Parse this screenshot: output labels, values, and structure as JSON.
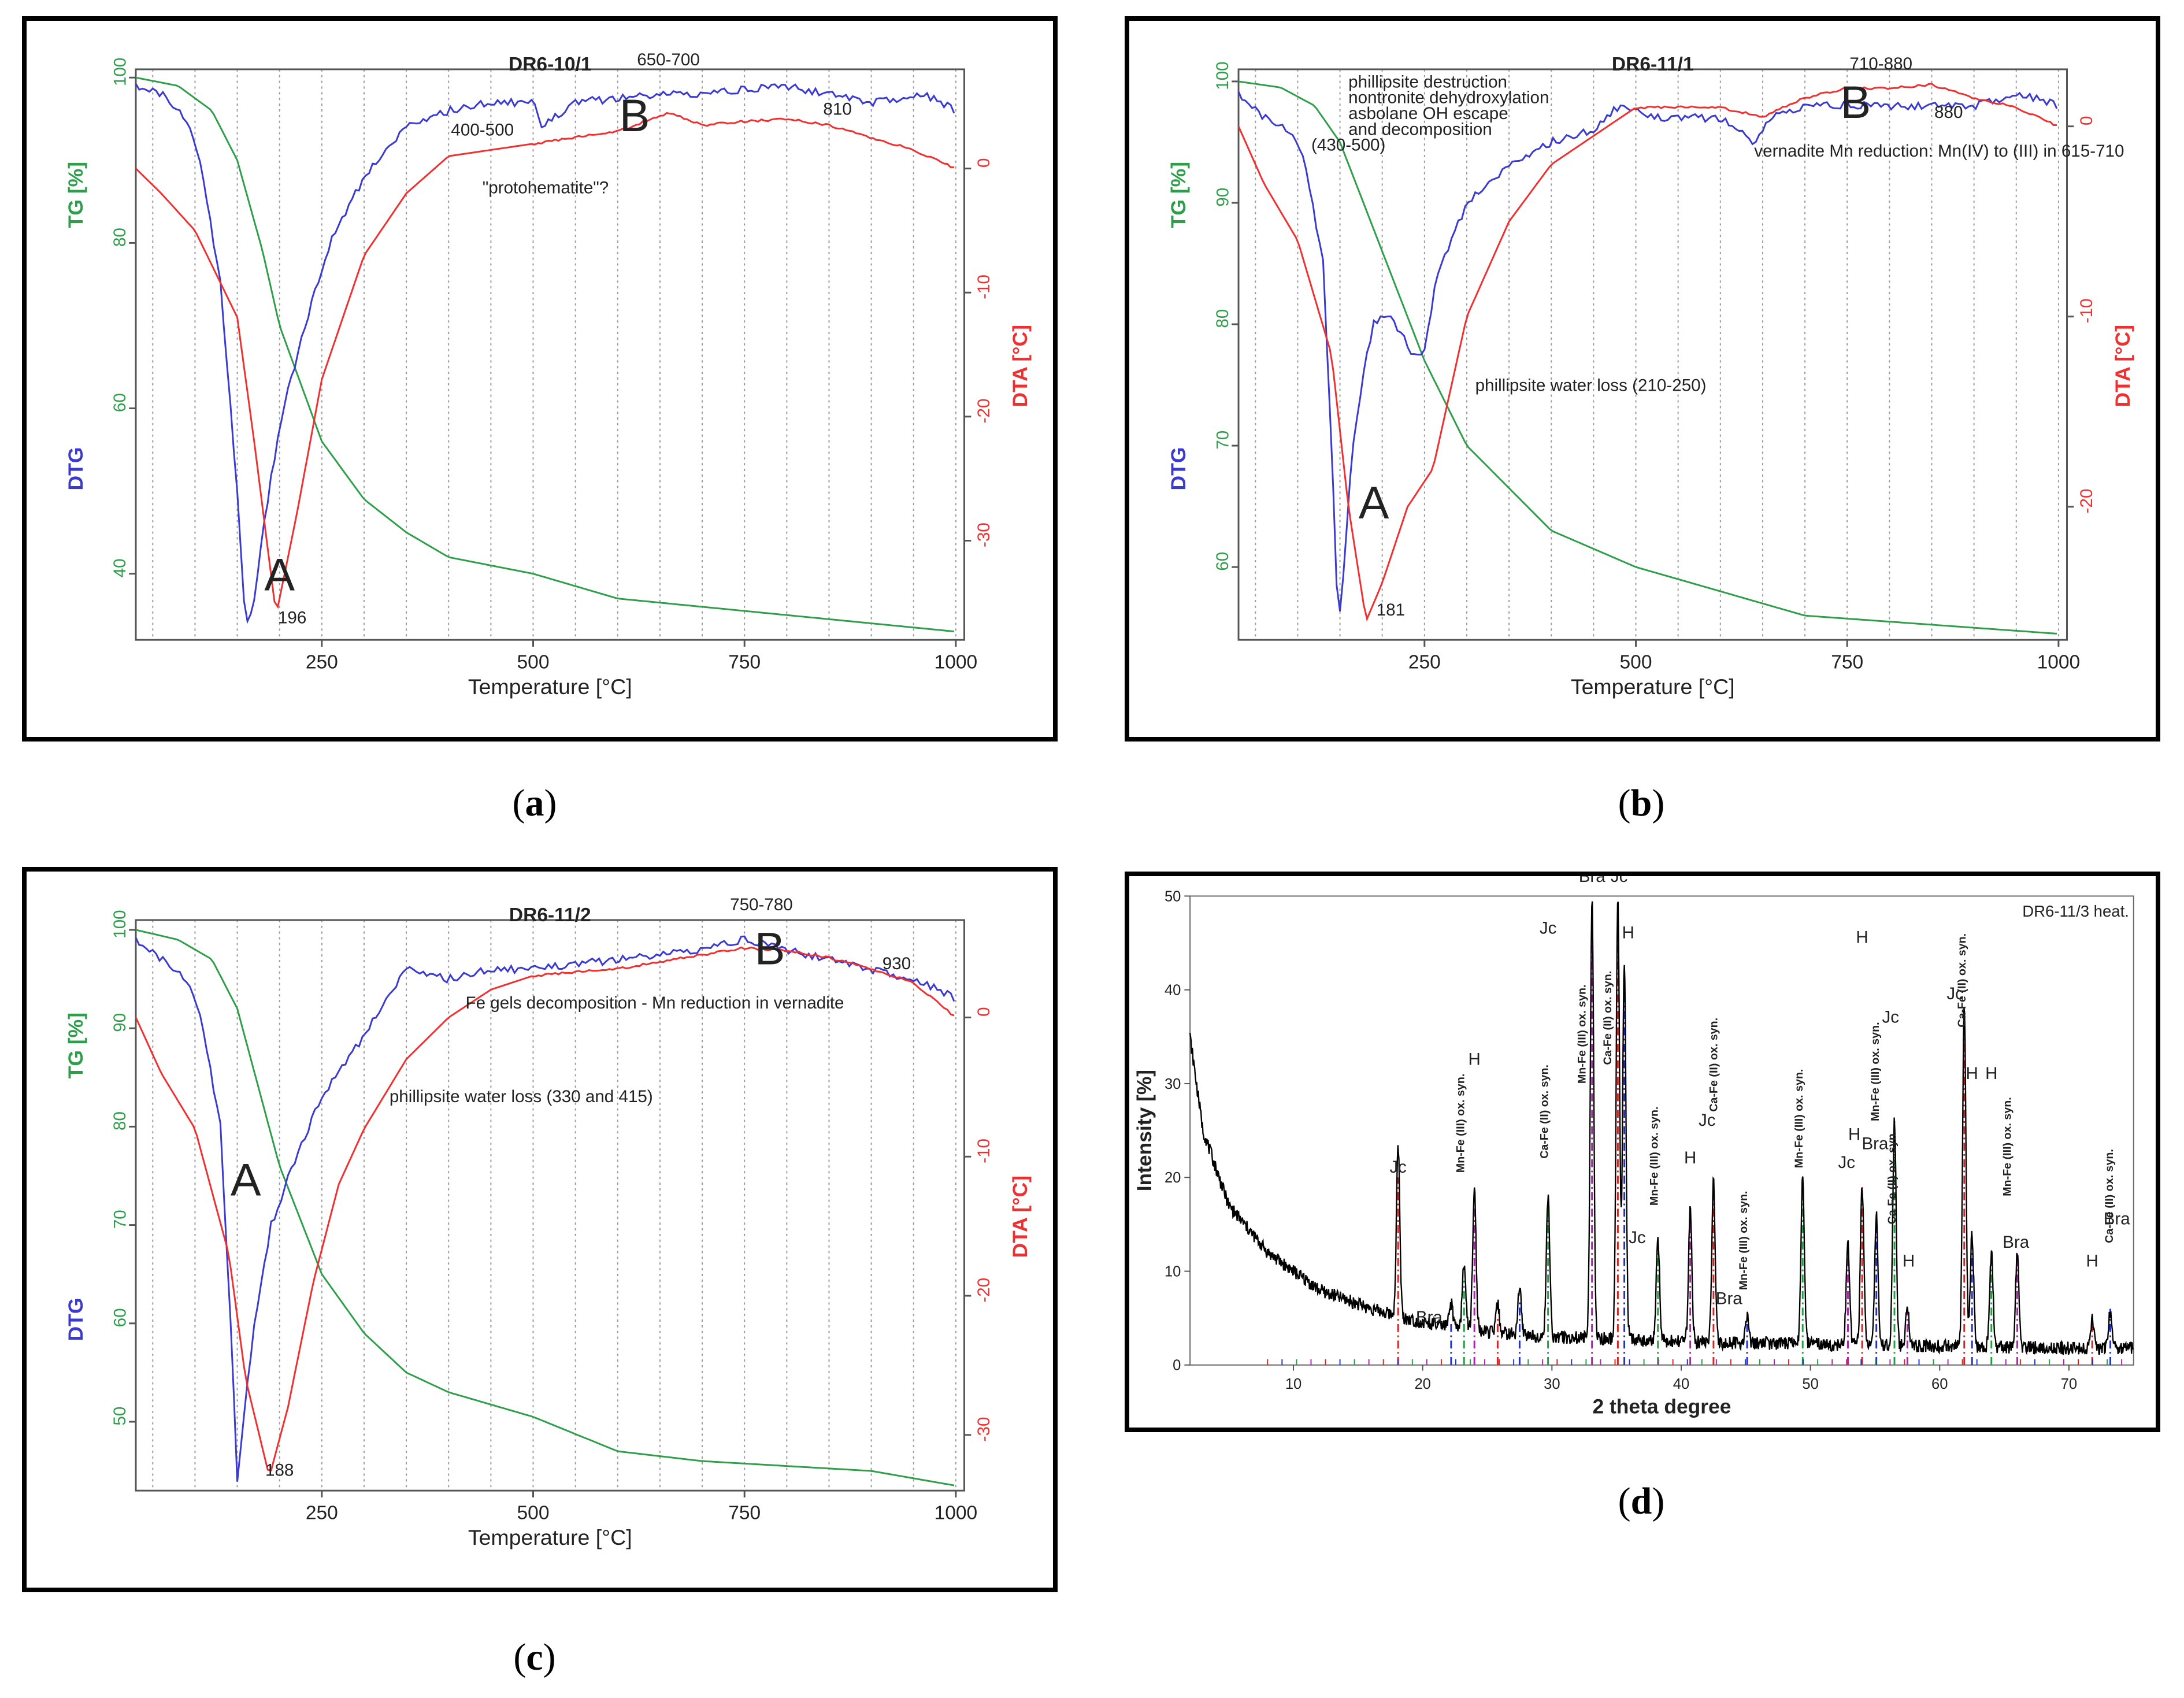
{
  "colors": {
    "tg": "#2e9e4a",
    "dtg": "#3a3ad0",
    "dta": "#f03030",
    "grid": "#9a9a9a",
    "xrd": "#000000"
  },
  "captions": {
    "a": "a",
    "b": "b",
    "c": "c",
    "d": "d"
  },
  "chart_data": [
    {
      "id": "a",
      "type": "line",
      "title": "DR6-10/1",
      "xlabel": "Temperature [°C]",
      "ylabel_left": "TG [%]",
      "ylabel_left2": "DTG",
      "ylabel_right": "DTA [°C]",
      "xlim": [
        30,
        1010
      ],
      "ylim": [
        32,
        101
      ],
      "y2lim": [
        -38,
        8
      ],
      "xticks": [
        "250",
        "500",
        "750",
        "1000"
      ],
      "yticks": [
        "40",
        "60",
        "80",
        "100"
      ],
      "y2ticks": [
        "0",
        "-10",
        "-20",
        "-30"
      ],
      "series": [
        {
          "name": "TG",
          "axis": "left",
          "x": [
            30,
            80,
            120,
            150,
            180,
            200,
            250,
            300,
            350,
            400,
            500,
            600,
            700,
            800,
            900,
            1000
          ],
          "values": [
            100,
            99,
            96,
            90,
            79,
            70,
            56,
            49,
            45,
            42,
            40,
            37,
            36,
            35,
            34,
            33
          ]
        },
        {
          "name": "DTG",
          "axis": "left",
          "x": [
            30,
            60,
            90,
            110,
            130,
            150,
            160,
            170,
            180,
            200,
            230,
            260,
            300,
            350,
            400,
            450,
            500,
            510,
            550,
            650,
            700,
            800,
            900,
            960,
            1000
          ],
          "values": [
            99,
            98,
            95,
            88,
            75,
            50,
            33,
            37,
            45,
            58,
            70,
            80,
            88,
            94,
            96,
            97,
            97,
            94,
            97,
            98,
            98,
            99,
            97,
            98,
            96
          ]
        },
        {
          "name": "DTA",
          "axis": "right",
          "x": [
            30,
            60,
            100,
            150,
            170,
            196,
            220,
            250,
            300,
            350,
            400,
            500,
            600,
            660,
            700,
            750,
            800,
            850,
            900,
            950,
            1000
          ],
          "values": [
            0,
            -2,
            -5,
            -12,
            -22,
            -36,
            -28,
            -17,
            -7,
            -2,
            1,
            2,
            3,
            4.5,
            3.5,
            3.8,
            4,
            3.5,
            2.5,
            1.5,
            0
          ]
        }
      ],
      "annotations": [
        {
          "text": "650-700",
          "x": 660,
          "y": 101.5
        },
        {
          "text": "400-500",
          "x": 440,
          "y": 93
        },
        {
          "text": "B",
          "x": 620,
          "y": 93.5
        },
        {
          "text": "810",
          "x": 860,
          "y": 95.5
        },
        {
          "text": "\"protohematite\"?",
          "x": 440,
          "y": 86
        },
        {
          "text": "A",
          "x": 200,
          "y": 38
        },
        {
          "text": "196",
          "x": 215,
          "y": 34
        }
      ]
    },
    {
      "id": "b",
      "type": "line",
      "title": "DR6-11/1",
      "xlabel": "Temperature [°C]",
      "ylabel_left": "TG [%]",
      "ylabel_left2": "DTG",
      "ylabel_right": "DTA [°C]",
      "xlim": [
        30,
        1010
      ],
      "ylim": [
        54,
        101
      ],
      "y2lim": [
        -27,
        3
      ],
      "xticks": [
        "250",
        "500",
        "750",
        "1000"
      ],
      "yticks": [
        "60",
        "70",
        "80",
        "90",
        "100"
      ],
      "y2ticks": [
        "0",
        "-10",
        "-20"
      ],
      "series": [
        {
          "name": "TG",
          "axis": "left",
          "x": [
            30,
            80,
            120,
            150,
            200,
            250,
            300,
            400,
            500,
            600,
            700,
            800,
            900,
            1000
          ],
          "values": [
            100,
            99.5,
            98,
            95,
            86,
            77,
            70,
            63,
            60,
            58,
            56,
            55.5,
            55,
            54.5
          ]
        },
        {
          "name": "DTG",
          "axis": "left",
          "x": [
            30,
            60,
            90,
            110,
            130,
            140,
            148,
            155,
            165,
            180,
            190,
            200,
            215,
            225,
            240,
            250,
            265,
            300,
            350,
            400,
            450,
            480,
            520,
            600,
            640,
            660,
            700,
            800,
            900,
            950,
            1000
          ],
          "values": [
            99,
            97,
            96,
            93,
            85,
            70,
            55,
            60,
            70,
            77,
            80,
            81,
            80,
            79,
            77,
            78,
            84,
            90,
            93,
            95,
            96,
            98,
            97,
            97,
            95,
            97,
            98,
            98,
            98,
            99,
            98
          ]
        },
        {
          "name": "DTA",
          "axis": "right",
          "x": [
            30,
            60,
            100,
            140,
            160,
            181,
            200,
            230,
            260,
            300,
            350,
            400,
            500,
            600,
            650,
            700,
            750,
            800,
            850,
            900,
            950,
            1000
          ],
          "values": [
            0,
            -3,
            -6,
            -12,
            -20,
            -26,
            -24,
            -20,
            -18,
            -10,
            -5,
            -2,
            1,
            1,
            0.5,
            1.5,
            2,
            2,
            2.2,
            1.5,
            1,
            0
          ]
        }
      ],
      "annotations": [
        {
          "text": "phillipsite destruction",
          "x": 160,
          "y": 99.5
        },
        {
          "text": "nontronite dehydroxylation",
          "x": 160,
          "y": 98.2
        },
        {
          "text": "asbolane OH escape",
          "x": 160,
          "y": 96.9
        },
        {
          "text": "and decomposition",
          "x": 160,
          "y": 95.6
        },
        {
          "text": "(430-500)",
          "x": 160,
          "y": 94.3
        },
        {
          "text": "710-880",
          "x": 790,
          "y": 101
        },
        {
          "text": "B",
          "x": 760,
          "y": 97
        },
        {
          "text": "880",
          "x": 870,
          "y": 97
        },
        {
          "text": "vernadite Mn reduction: Mn(IV) to (III) in 615-710",
          "x": 640,
          "y": 93.8
        },
        {
          "text": "phillipsite water loss (210-250)",
          "x": 310,
          "y": 74.5
        },
        {
          "text": "A",
          "x": 190,
          "y": 64
        },
        {
          "text": "181",
          "x": 210,
          "y": 56
        }
      ]
    },
    {
      "id": "c",
      "type": "line",
      "title": "DR6-11/2",
      "xlabel": "Temperature [°C]",
      "ylabel_left": "TG [%]",
      "ylabel_left2": "DTG",
      "ylabel_right": "DTA [°C]",
      "xlim": [
        30,
        1010
      ],
      "ylim": [
        43,
        101
      ],
      "y2lim": [
        -34,
        7
      ],
      "xticks": [
        "250",
        "500",
        "750",
        "1000"
      ],
      "yticks": [
        "50",
        "60",
        "70",
        "80",
        "90",
        "100"
      ],
      "y2ticks": [
        "0",
        "-10",
        "-20",
        "-30"
      ],
      "series": [
        {
          "name": "TG",
          "axis": "left",
          "x": [
            30,
            80,
            120,
            150,
            200,
            250,
            300,
            350,
            400,
            500,
            600,
            700,
            800,
            900,
            1000
          ],
          "values": [
            100,
            99,
            97,
            92,
            76,
            65,
            59,
            55,
            53,
            50.5,
            47,
            46,
            45.5,
            45,
            43.5
          ]
        },
        {
          "name": "DTG",
          "axis": "left",
          "x": [
            30,
            60,
            90,
            110,
            130,
            145,
            150,
            160,
            170,
            190,
            220,
            250,
            290,
            320,
            350,
            400,
            450,
            500,
            600,
            700,
            750,
            800,
            850,
            900,
            950,
            1000
          ],
          "values": [
            99,
            97,
            95,
            90,
            80,
            55,
            44,
            52,
            60,
            70,
            77,
            83,
            88,
            92,
            96,
            95,
            96,
            96,
            97,
            98,
            99,
            98,
            97,
            96,
            95,
            93
          ]
        },
        {
          "name": "DTA",
          "axis": "right",
          "x": [
            30,
            60,
            100,
            140,
            160,
            188,
            210,
            240,
            270,
            300,
            350,
            400,
            450,
            500,
            600,
            700,
            750,
            800,
            850,
            900,
            950,
            1000
          ],
          "values": [
            0,
            -4,
            -8,
            -17,
            -26,
            -33,
            -28,
            -19,
            -12,
            -8,
            -3,
            0,
            2,
            3,
            3.5,
            4.5,
            5,
            4.8,
            4.3,
            3.5,
            2.5,
            0
          ]
        }
      ],
      "annotations": [
        {
          "text": "750-780",
          "x": 770,
          "y": 102
        },
        {
          "text": "B",
          "x": 780,
          "y": 96.5
        },
        {
          "text": "930",
          "x": 930,
          "y": 96
        },
        {
          "text": "Fe gels decomposition - Mn reduction in vernadite",
          "x": 420,
          "y": 92
        },
        {
          "text": "phillipsite water loss (330 and 415)",
          "x": 330,
          "y": 82.5
        },
        {
          "text": "A",
          "x": 160,
          "y": 73
        },
        {
          "text": "188",
          "x": 200,
          "y": 44.5
        }
      ]
    },
    {
      "id": "d",
      "type": "line",
      "title": "DR6-11/3 heat.",
      "xlabel": "2 theta degree",
      "ylabel": "Intensity [%]",
      "xlim": [
        2,
        75
      ],
      "ylim": [
        0,
        50
      ],
      "xticks": [
        "10",
        "20",
        "30",
        "40",
        "50",
        "60",
        "70"
      ],
      "yticks": [
        "0",
        "10",
        "20",
        "30",
        "40",
        "50"
      ],
      "baseline": {
        "x": [
          2,
          3,
          5,
          8,
          12,
          16,
          20,
          25,
          30,
          40,
          50,
          60,
          70,
          75
        ],
        "values": [
          35,
          25,
          17,
          12,
          8,
          6,
          4.5,
          3.5,
          3,
          2.5,
          2.2,
          2,
          1.8,
          1.8
        ]
      },
      "peaks": [
        {
          "x": 18.1,
          "h": 18
        },
        {
          "x": 22.2,
          "h": 2.5
        },
        {
          "x": 23.2,
          "h": 7
        },
        {
          "x": 24.0,
          "h": 15
        },
        {
          "x": 25.8,
          "h": 3
        },
        {
          "x": 27.5,
          "h": 5
        },
        {
          "x": 29.7,
          "h": 15
        },
        {
          "x": 33.1,
          "h": 47
        },
        {
          "x": 35.1,
          "h": 47
        },
        {
          "x": 35.6,
          "h": 40
        },
        {
          "x": 38.2,
          "h": 11
        },
        {
          "x": 40.7,
          "h": 14
        },
        {
          "x": 42.5,
          "h": 17
        },
        {
          "x": 45.1,
          "h": 3
        },
        {
          "x": 49.4,
          "h": 18
        },
        {
          "x": 52.9,
          "h": 11
        },
        {
          "x": 54.0,
          "h": 17
        },
        {
          "x": 55.1,
          "h": 14
        },
        {
          "x": 56.5,
          "h": 24
        },
        {
          "x": 57.5,
          "h": 4
        },
        {
          "x": 61.9,
          "h": 36
        },
        {
          "x": 62.5,
          "h": 12
        },
        {
          "x": 64.0,
          "h": 10
        },
        {
          "x": 66.0,
          "h": 10
        },
        {
          "x": 71.8,
          "h": 3
        },
        {
          "x": 73.2,
          "h": 4
        }
      ],
      "labels": [
        {
          "text": "Jc",
          "x": 18.1,
          "y": 20.5,
          "rotated": false
        },
        {
          "text": "Bra",
          "x": 20.5,
          "y": 4.5,
          "rotated": false
        },
        {
          "text": "Mn-Fe (III) ox. syn.",
          "x": 23.2,
          "y": 20.5,
          "rotated": true
        },
        {
          "text": "H",
          "x": 24.0,
          "y": 32,
          "rotated": false
        },
        {
          "text": "Ca-Fe (II) ox. syn.",
          "x": 29.7,
          "y": 22,
          "rotated": true
        },
        {
          "text": "Jc",
          "x": 29.7,
          "y": 46,
          "rotated": false
        },
        {
          "text": "Mn-Fe (III) ox. syn.",
          "x": 32.6,
          "y": 30,
          "rotated": true
        },
        {
          "text": "Bra",
          "x": 33.1,
          "y": 51.5,
          "rotated": false
        },
        {
          "text": "Jc",
          "x": 35.2,
          "y": 51.5,
          "rotated": false
        },
        {
          "text": "Ca-Fe (II) ox. syn.",
          "x": 34.6,
          "y": 32,
          "rotated": true
        },
        {
          "text": "H",
          "x": 35.9,
          "y": 45.5,
          "rotated": false
        },
        {
          "text": "Jc",
          "x": 36.6,
          "y": 13,
          "rotated": false
        },
        {
          "text": "Mn-Fe (III) ox. syn.",
          "x": 38.2,
          "y": 17,
          "rotated": true
        },
        {
          "text": "H",
          "x": 40.7,
          "y": 21.5,
          "rotated": false
        },
        {
          "text": "Jc",
          "x": 42.0,
          "y": 25.5,
          "rotated": false
        },
        {
          "text": "Ca-Fe (II) ox. syn.",
          "x": 42.8,
          "y": 27,
          "rotated": true
        },
        {
          "text": "Bra",
          "x": 43.7,
          "y": 6.5,
          "rotated": false
        },
        {
          "text": "Mn-Fe (III) ox. syn.",
          "x": 45.1,
          "y": 8,
          "rotated": true
        },
        {
          "text": "Mn-Fe (III) ox. syn.",
          "x": 49.4,
          "y": 21,
          "rotated": true
        },
        {
          "text": "Jc",
          "x": 52.8,
          "y": 21,
          "rotated": false
        },
        {
          "text": "H",
          "x": 53.4,
          "y": 24,
          "rotated": false
        },
        {
          "text": "H",
          "x": 54.0,
          "y": 45,
          "rotated": false
        },
        {
          "text": "Bra",
          "x": 55.0,
          "y": 23,
          "rotated": false
        },
        {
          "text": "Mn-Fe (III) ox. syn.",
          "x": 55.3,
          "y": 26,
          "rotated": true
        },
        {
          "text": "Jc",
          "x": 56.2,
          "y": 36.5,
          "rotated": false
        },
        {
          "text": "Ca-Fe (II) ox. syn.",
          "x": 56.6,
          "y": 15,
          "rotated": true
        },
        {
          "text": "H",
          "x": 57.6,
          "y": 10.5,
          "rotated": false
        },
        {
          "text": "Jc",
          "x": 61.2,
          "y": 39,
          "rotated": false
        },
        {
          "text": "Ca-Fe (II) ox. syn.",
          "x": 62.0,
          "y": 36,
          "rotated": true
        },
        {
          "text": "H",
          "x": 62.5,
          "y": 30.5,
          "rotated": false
        },
        {
          "text": "H",
          "x": 64.0,
          "y": 30.5,
          "rotated": false
        },
        {
          "text": "Mn-Fe (III) ox. syn.",
          "x": 65.5,
          "y": 18,
          "rotated": true
        },
        {
          "text": "Bra",
          "x": 65.9,
          "y": 12.5,
          "rotated": false
        },
        {
          "text": "H",
          "x": 71.8,
          "y": 10.5,
          "rotated": false
        },
        {
          "text": "Ca-Fe (II) ox. syn.",
          "x": 73.4,
          "y": 13,
          "rotated": true
        },
        {
          "text": "Bra",
          "x": 73.7,
          "y": 15,
          "rotated": false
        }
      ]
    }
  ]
}
